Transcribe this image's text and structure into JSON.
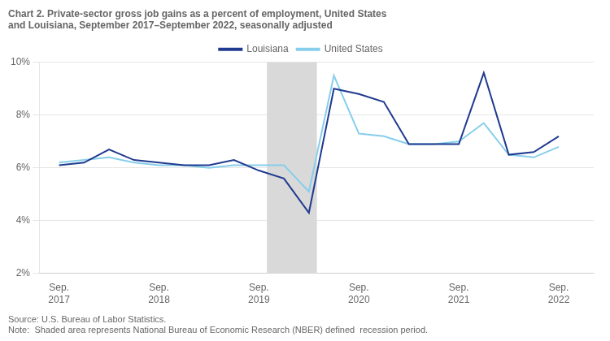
{
  "chart_data": {
    "type": "line",
    "title": "Chart 2. Private-sector gross job gains as a percent of employment, United States\nand Louisiana, September 2017–September 2022, seasonally adjusted",
    "annotations": [
      "Source: U.S. Bureau of Labor Statistics.",
      "Note:  Shaded area represents National Bureau of Economic Research (NBER) defined  recession period."
    ],
    "x": [
      2017.75,
      2018.0,
      2018.25,
      2018.5,
      2018.75,
      2019.0,
      2019.25,
      2019.5,
      2019.75,
      2020.0,
      2020.25,
      2020.5,
      2020.75,
      2021.0,
      2021.25,
      2021.5,
      2021.75,
      2022.0,
      2022.25,
      2022.5,
      2022.75
    ],
    "series": [
      {
        "name": "Louisiana",
        "color": "#1f3a8f",
        "values": [
          6.1,
          6.2,
          6.7,
          6.3,
          6.2,
          6.1,
          6.1,
          6.3,
          5.9,
          5.6,
          4.3,
          9.0,
          8.8,
          8.5,
          6.9,
          6.9,
          6.9,
          9.6,
          6.5,
          6.6,
          7.2
        ]
      },
      {
        "name": "United States",
        "color": "#87ceeb",
        "values": [
          6.2,
          6.3,
          6.4,
          6.2,
          6.1,
          6.1,
          6.0,
          6.1,
          6.1,
          6.1,
          5.1,
          9.5,
          7.3,
          7.2,
          6.9,
          6.9,
          7.0,
          7.7,
          6.5,
          6.4,
          6.8
        ]
      }
    ],
    "shaded_span": {
      "start": 2019.83,
      "end": 2020.33,
      "color": "#d9d9d9"
    },
    "xlim": [
      2017.55,
      2023.1
    ],
    "xticks": [
      {
        "value": 2017.75,
        "label": "Sep.\n2017"
      },
      {
        "value": 2018.75,
        "label": "Sep.\n2018"
      },
      {
        "value": 2019.75,
        "label": "Sep.\n2019"
      },
      {
        "value": 2020.75,
        "label": "Sep.\n2020"
      },
      {
        "value": 2021.75,
        "label": "Sep.\n2021"
      },
      {
        "value": 2022.75,
        "label": "Sep.\n2022"
      }
    ],
    "ylim": [
      2,
      10
    ],
    "yticks": [
      {
        "value": 2,
        "label": "2%"
      },
      {
        "value": 4,
        "label": "4%"
      },
      {
        "value": 6,
        "label": "6%"
      },
      {
        "value": 8,
        "label": "8%"
      },
      {
        "value": 10,
        "label": "10%"
      }
    ],
    "grid": "y",
    "legend": "top"
  }
}
